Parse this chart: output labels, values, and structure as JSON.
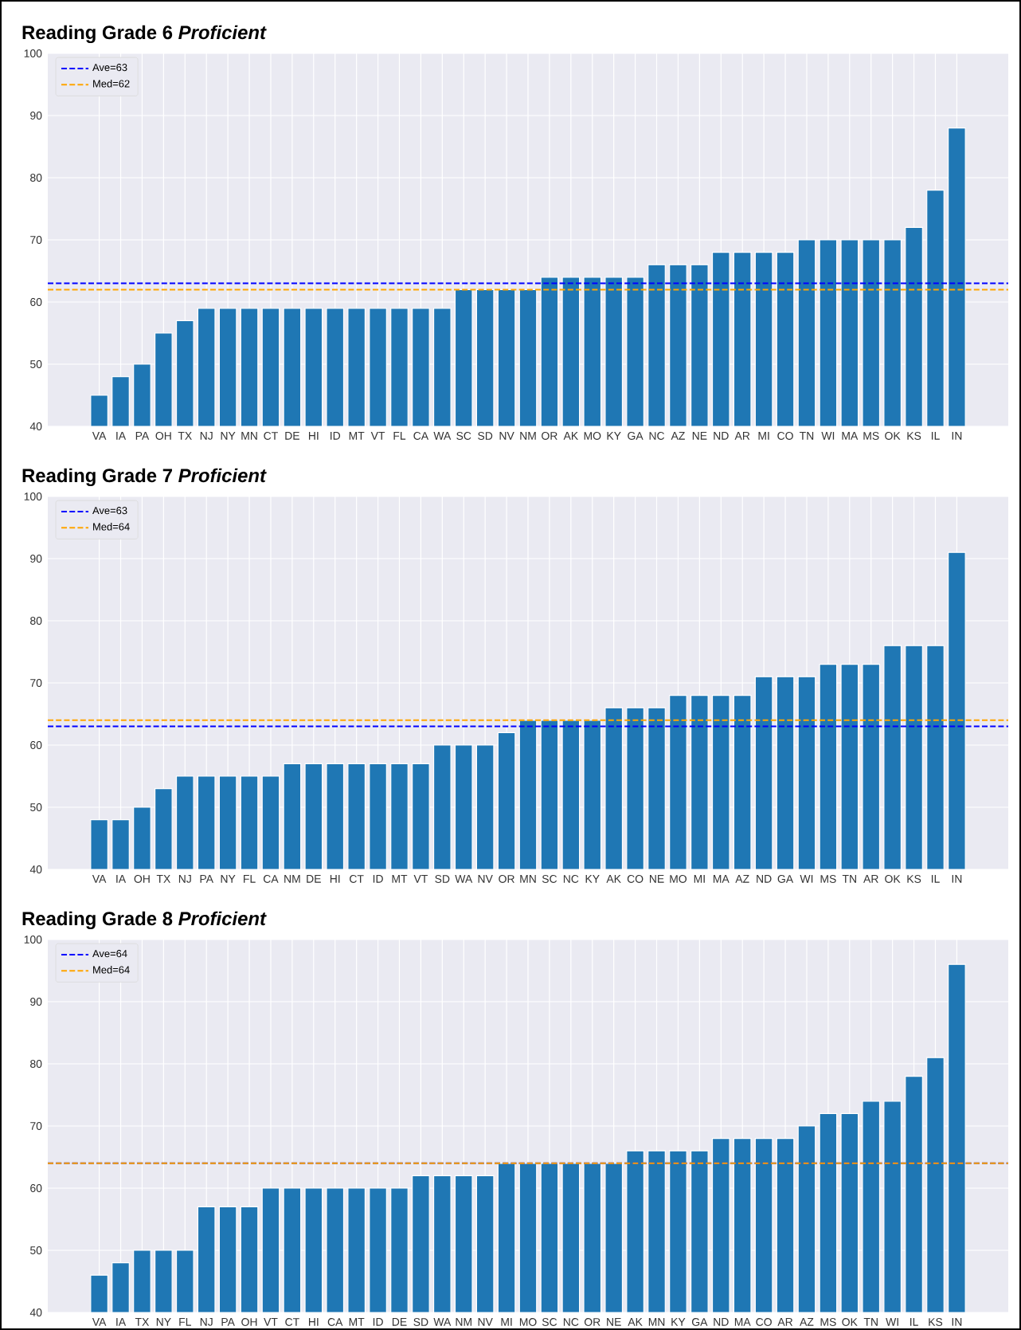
{
  "chart_data": [
    {
      "type": "bar",
      "title": "Reading Grade 6 *Proficient*",
      "categories": [
        "VA",
        "IA",
        "PA",
        "OH",
        "TX",
        "NJ",
        "NY",
        "MN",
        "CT",
        "DE",
        "HI",
        "ID",
        "MT",
        "VT",
        "FL",
        "CA",
        "WA",
        "SC",
        "SD",
        "NV",
        "NM",
        "OR",
        "AK",
        "MO",
        "KY",
        "GA",
        "NC",
        "AZ",
        "NE",
        "ND",
        "AR",
        "MI",
        "CO",
        "TN",
        "WI",
        "MA",
        "MS",
        "OK",
        "KS",
        "IL",
        "IN"
      ],
      "values": [
        45,
        48,
        50,
        55,
        57,
        59,
        59,
        59,
        59,
        59,
        59,
        59,
        59,
        59,
        59,
        59,
        59,
        62,
        62,
        62,
        62,
        64,
        64,
        64,
        64,
        64,
        66,
        66,
        66,
        68,
        68,
        68,
        68,
        70,
        70,
        70,
        70,
        70,
        72,
        78,
        88
      ],
      "color": "#1f77b4",
      "ylim": [
        40,
        100
      ],
      "yticks": [
        40,
        50,
        60,
        70,
        80,
        90,
        100
      ],
      "grid": true,
      "legend": "top left",
      "ref_lines": [
        {
          "axis": "y",
          "value": 63,
          "label": "Ave=63",
          "color": "#0000ff",
          "line_style": "dashed"
        },
        {
          "axis": "y",
          "value": 62,
          "label": "Med=62",
          "color": "#ffa500",
          "line_style": "dashed"
        }
      ]
    },
    {
      "type": "bar",
      "title": "Reading Grade 7 *Proficient*",
      "categories": [
        "VA",
        "IA",
        "OH",
        "TX",
        "NJ",
        "PA",
        "NY",
        "FL",
        "CA",
        "NM",
        "DE",
        "HI",
        "CT",
        "ID",
        "MT",
        "VT",
        "SD",
        "WA",
        "NV",
        "OR",
        "MN",
        "SC",
        "NC",
        "KY",
        "AK",
        "CO",
        "NE",
        "MO",
        "MI",
        "MA",
        "AZ",
        "ND",
        "GA",
        "WI",
        "MS",
        "TN",
        "AR",
        "OK",
        "KS",
        "IL",
        "IN"
      ],
      "values": [
        48,
        48,
        50,
        53,
        55,
        55,
        55,
        55,
        55,
        57,
        57,
        57,
        57,
        57,
        57,
        57,
        60,
        60,
        60,
        62,
        64,
        64,
        64,
        64,
        66,
        66,
        66,
        68,
        68,
        68,
        68,
        71,
        71,
        71,
        73,
        73,
        73,
        76,
        76,
        76,
        91
      ],
      "color": "#1f77b4",
      "ylim": [
        40,
        100
      ],
      "yticks": [
        40,
        50,
        60,
        70,
        80,
        90,
        100
      ],
      "grid": true,
      "legend": "top left",
      "ref_lines": [
        {
          "axis": "y",
          "value": 63,
          "label": "Ave=63",
          "color": "#0000ff",
          "line_style": "dashed"
        },
        {
          "axis": "y",
          "value": 64,
          "label": "Med=64",
          "color": "#ffa500",
          "line_style": "dashed"
        }
      ]
    },
    {
      "type": "bar",
      "title": "Reading Grade 8 *Proficient*",
      "categories": [
        "VA",
        "IA",
        "TX",
        "NY",
        "FL",
        "NJ",
        "PA",
        "OH",
        "VT",
        "CT",
        "HI",
        "CA",
        "MT",
        "ID",
        "DE",
        "SD",
        "WA",
        "NM",
        "NV",
        "MI",
        "MO",
        "SC",
        "NC",
        "OR",
        "NE",
        "AK",
        "MN",
        "KY",
        "GA",
        "ND",
        "MA",
        "CO",
        "AR",
        "AZ",
        "MS",
        "OK",
        "TN",
        "WI",
        "IL",
        "KS",
        "IN"
      ],
      "values": [
        46,
        48,
        50,
        50,
        50,
        57,
        57,
        57,
        60,
        60,
        60,
        60,
        60,
        60,
        60,
        62,
        62,
        62,
        62,
        64,
        64,
        64,
        64,
        64,
        64,
        66,
        66,
        66,
        66,
        68,
        68,
        68,
        68,
        70,
        72,
        72,
        74,
        74,
        78,
        81,
        96
      ],
      "color": "#1f77b4",
      "ylim": [
        40,
        100
      ],
      "yticks": [
        40,
        50,
        60,
        70,
        80,
        90,
        100
      ],
      "grid": true,
      "legend": "top left",
      "ref_lines": [
        {
          "axis": "y",
          "value": 64,
          "label": "Ave=64",
          "color": "#0000ff",
          "line_style": "dashed"
        },
        {
          "axis": "y",
          "value": 64,
          "label": "Med=64",
          "color": "#ffa500",
          "line_style": "dashed"
        }
      ]
    }
  ]
}
